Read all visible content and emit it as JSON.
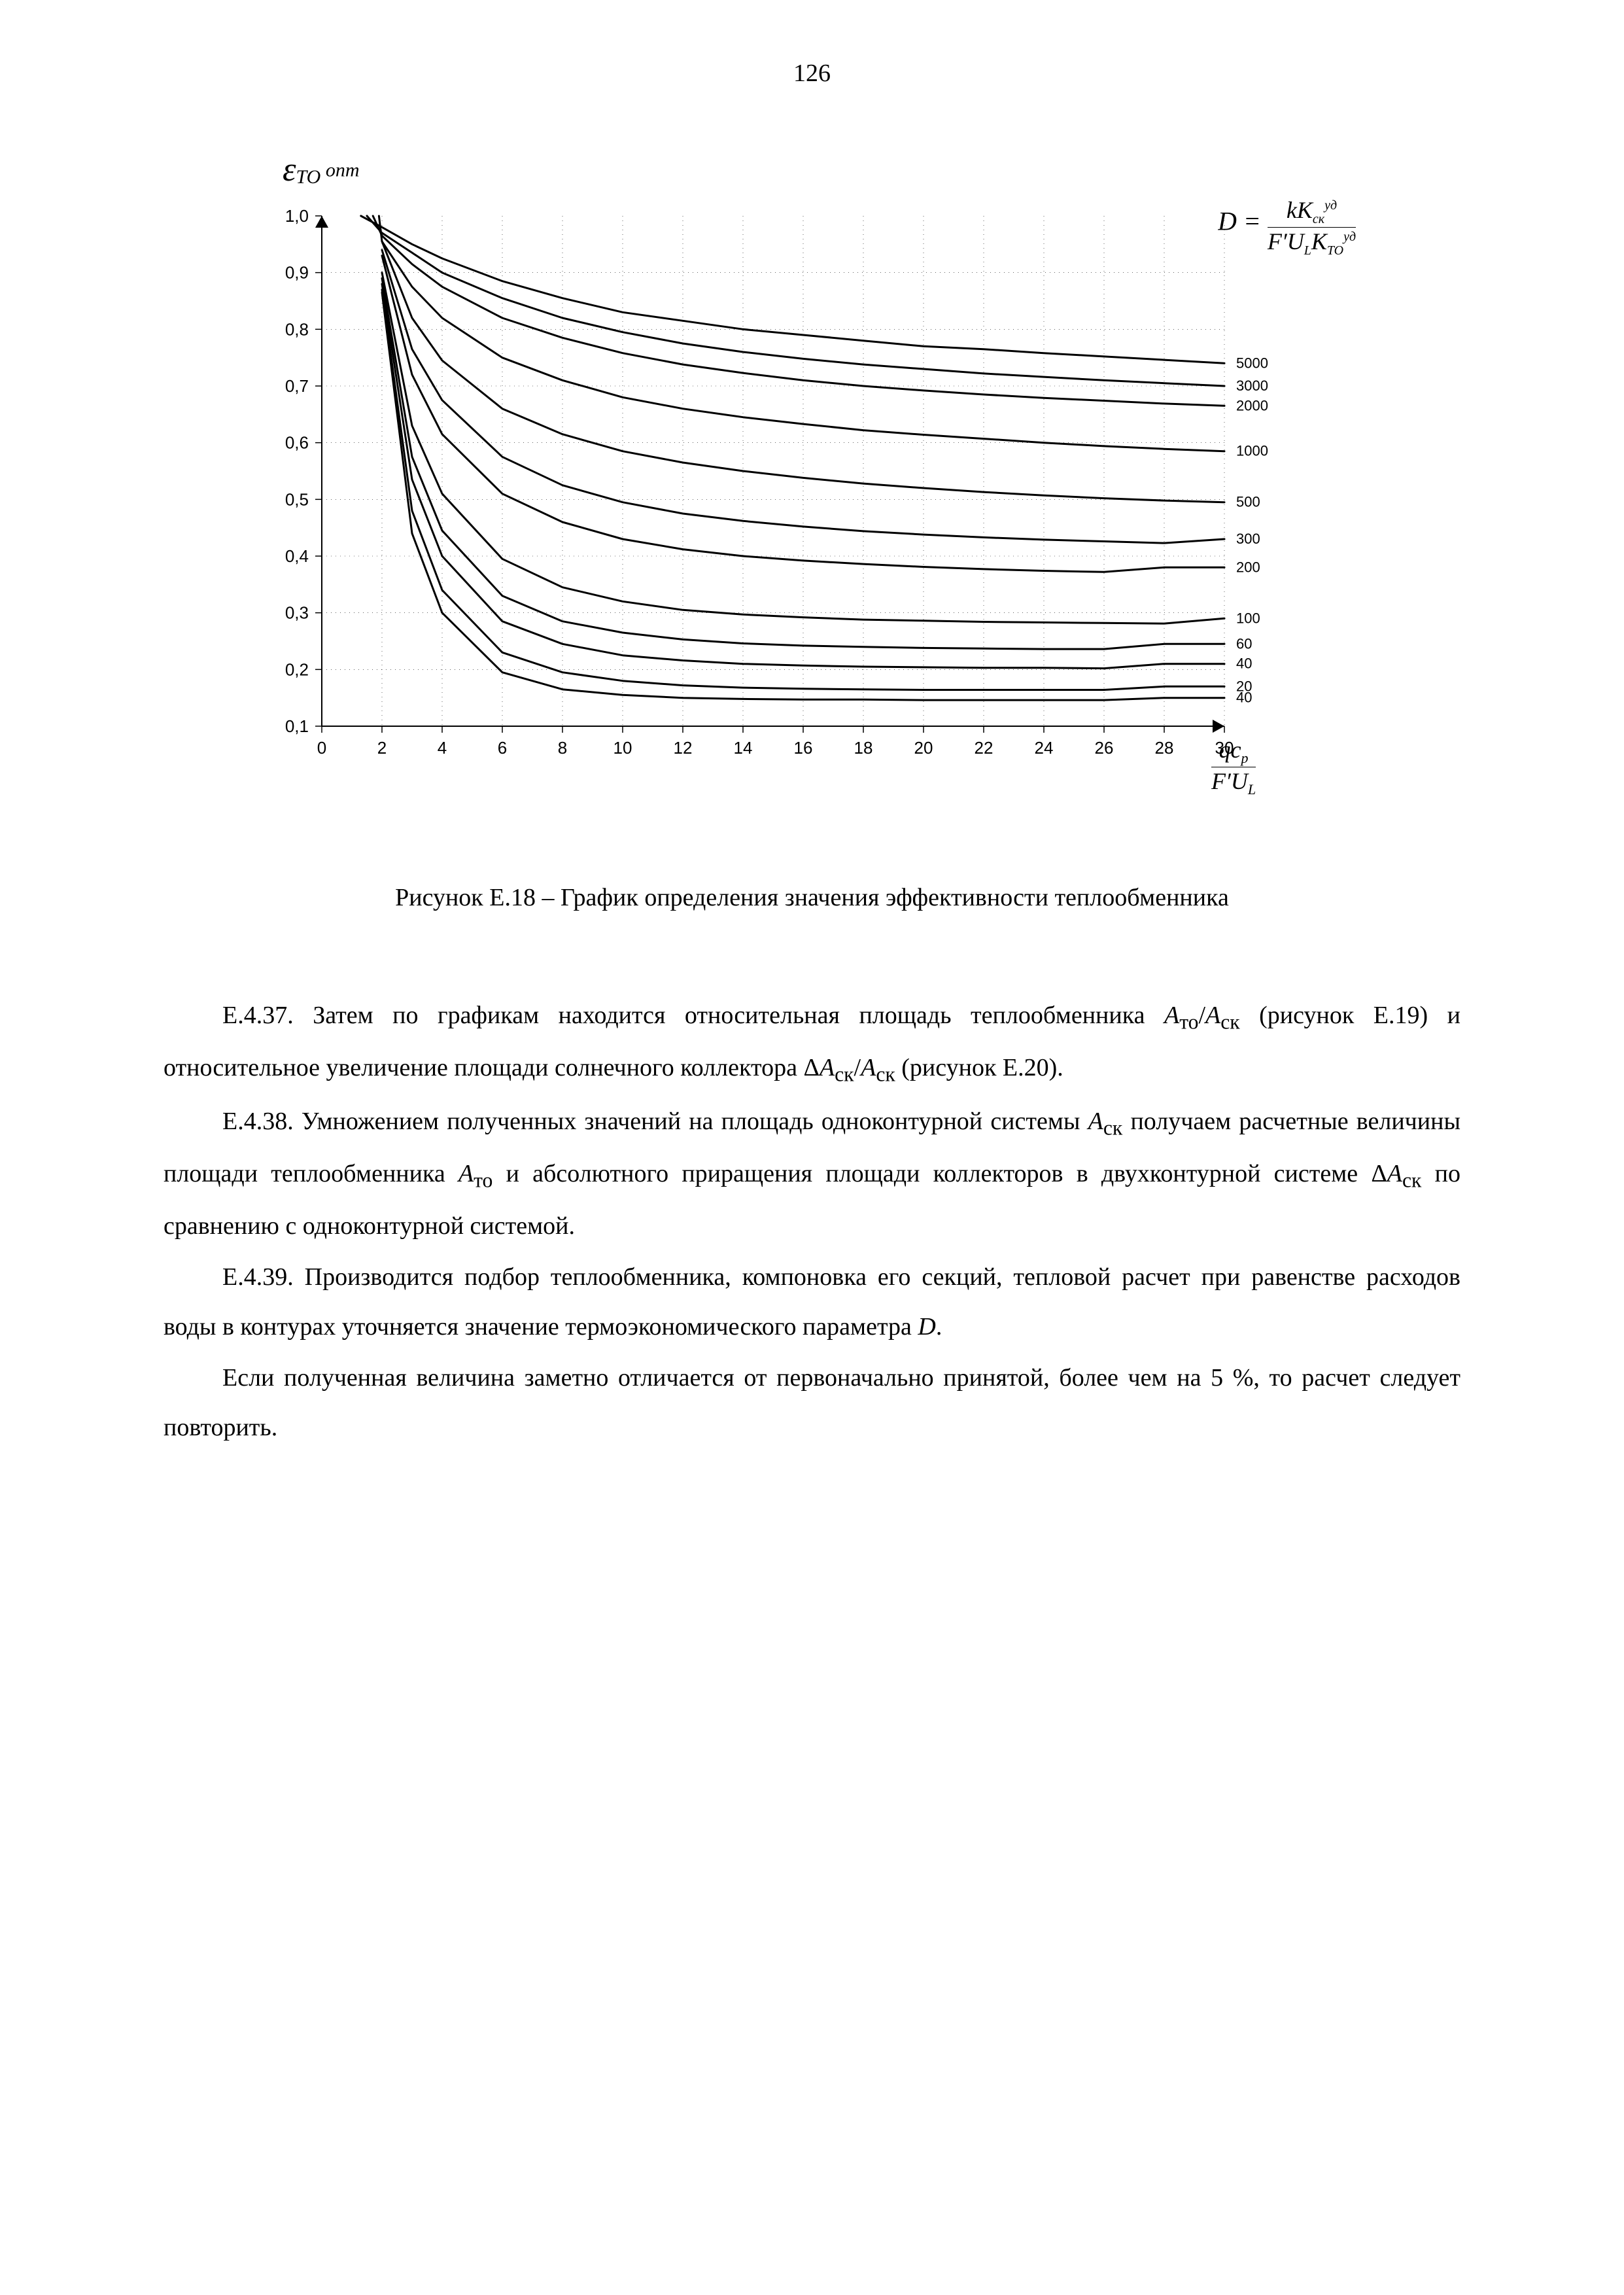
{
  "page_number": "126",
  "caption": "Рисунок Е.18 – График определения значения эффективности теплообменника",
  "chart": {
    "type": "line",
    "background_color": "#ffffff",
    "axis_color": "#000000",
    "grid_color": "#000000",
    "font_family": "Arial",
    "tick_fontsize": 26,
    "y_axis_title_html": "<span style='font-style:italic;font-size:52px;font-family:\"Times New Roman\"'>ε</span><span style='font-style:italic;font-size:30px;vertical-align:sub;font-family:\"Times New Roman\"'>TO</span><span style='font-style:italic;font-size:30px;vertical-align:super;font-family:\"Times New Roman\"'>&nbsp;onm</span>",
    "x_axis_title_html": "<span style='display:inline-block;vertical-align:middle'><span style='display:block;text-align:center;border-bottom:1.5px solid #000;padding:0 6px;font-style:italic;font-size:36px;font-family:\"Times New Roman\"'>qc<sub style='font-size:22px'>p</sub></span><span style='display:block;text-align:center;font-style:italic;font-size:36px;font-family:\"Times New Roman\"'>F&#8242;U<sub style='font-size:22px'>L</sub></span></span>",
    "d_formula_html": "<span style='font-style:italic;font-size:40px;font-family:\"Times New Roman\"'>D = </span><span style='display:inline-block;vertical-align:middle'><span style='display:block;text-align:center;border-bottom:1.5px solid #000;padding:0 6px;font-style:italic;font-size:36px;font-family:\"Times New Roman\"'>kK<sub style='font-size:20px'>ск</sub><sup style='font-size:20px'>уд</sup></span><span style='display:block;text-align:center;font-style:italic;font-size:36px;font-family:\"Times New Roman\"'>F&#8242;U<sub style='font-size:20px'>L</sub>K<sub style='font-size:20px'>TO</sub><sup style='font-size:20px'>уд</sup></span></span>",
    "xlim": [
      0,
      30
    ],
    "ylim": [
      0.1,
      1.0
    ],
    "xtick_step": 2,
    "ytick_step": 0.1,
    "xticks": [
      "0",
      "2",
      "4",
      "6",
      "8",
      "10",
      "12",
      "14",
      "16",
      "18",
      "20",
      "22",
      "24",
      "26",
      "28",
      "30"
    ],
    "yticks": [
      "0,1",
      "0,2",
      "0,3",
      "0,4",
      "0,5",
      "0,6",
      "0,7",
      "0,8",
      "0,9",
      "1,0"
    ],
    "line_color": "#000000",
    "line_width": 3,
    "series": [
      {
        "label": "5000",
        "end_y": 0.74,
        "points": [
          [
            1.3,
            1.0
          ],
          [
            2,
            0.98
          ],
          [
            3,
            0.95
          ],
          [
            4,
            0.925
          ],
          [
            6,
            0.885
          ],
          [
            8,
            0.855
          ],
          [
            10,
            0.83
          ],
          [
            12,
            0.815
          ],
          [
            14,
            0.8
          ],
          [
            16,
            0.79
          ],
          [
            18,
            0.78
          ],
          [
            20,
            0.77
          ],
          [
            22,
            0.765
          ],
          [
            24,
            0.758
          ],
          [
            26,
            0.752
          ],
          [
            28,
            0.746
          ],
          [
            30,
            0.74
          ]
        ]
      },
      {
        "label": "3000",
        "end_y": 0.7,
        "points": [
          [
            1.5,
            1.0
          ],
          [
            2,
            0.97
          ],
          [
            3,
            0.935
          ],
          [
            4,
            0.9
          ],
          [
            6,
            0.855
          ],
          [
            8,
            0.82
          ],
          [
            10,
            0.795
          ],
          [
            12,
            0.775
          ],
          [
            14,
            0.76
          ],
          [
            16,
            0.748
          ],
          [
            18,
            0.738
          ],
          [
            20,
            0.73
          ],
          [
            22,
            0.722
          ],
          [
            24,
            0.716
          ],
          [
            26,
            0.71
          ],
          [
            28,
            0.705
          ],
          [
            30,
            0.7
          ]
        ]
      },
      {
        "label": "2000",
        "end_y": 0.665,
        "points": [
          [
            1.7,
            1.0
          ],
          [
            2,
            0.965
          ],
          [
            3,
            0.915
          ],
          [
            4,
            0.875
          ],
          [
            6,
            0.82
          ],
          [
            8,
            0.785
          ],
          [
            10,
            0.758
          ],
          [
            12,
            0.738
          ],
          [
            14,
            0.723
          ],
          [
            16,
            0.71
          ],
          [
            18,
            0.7
          ],
          [
            20,
            0.692
          ],
          [
            22,
            0.685
          ],
          [
            24,
            0.679
          ],
          [
            26,
            0.674
          ],
          [
            28,
            0.669
          ],
          [
            30,
            0.665
          ]
        ]
      },
      {
        "label": "1000",
        "end_y": 0.585,
        "points": [
          [
            1.9,
            1.0
          ],
          [
            2,
            0.955
          ],
          [
            3,
            0.875
          ],
          [
            4,
            0.82
          ],
          [
            6,
            0.75
          ],
          [
            8,
            0.71
          ],
          [
            10,
            0.68
          ],
          [
            12,
            0.66
          ],
          [
            14,
            0.645
          ],
          [
            16,
            0.633
          ],
          [
            18,
            0.622
          ],
          [
            20,
            0.614
          ],
          [
            22,
            0.607
          ],
          [
            24,
            0.6
          ],
          [
            26,
            0.594
          ],
          [
            28,
            0.589
          ],
          [
            30,
            0.585
          ]
        ]
      },
      {
        "label": "500",
        "end_y": 0.495,
        "points": [
          [
            2,
            0.955
          ],
          [
            3,
            0.82
          ],
          [
            4,
            0.745
          ],
          [
            6,
            0.66
          ],
          [
            8,
            0.615
          ],
          [
            10,
            0.585
          ],
          [
            12,
            0.565
          ],
          [
            14,
            0.55
          ],
          [
            16,
            0.538
          ],
          [
            18,
            0.528
          ],
          [
            20,
            0.52
          ],
          [
            22,
            0.513
          ],
          [
            24,
            0.507
          ],
          [
            26,
            0.502
          ],
          [
            28,
            0.498
          ],
          [
            30,
            0.495
          ]
        ]
      },
      {
        "label": "300",
        "end_y": 0.43,
        "points": [
          [
            2,
            0.94
          ],
          [
            3,
            0.765
          ],
          [
            4,
            0.675
          ],
          [
            6,
            0.575
          ],
          [
            8,
            0.525
          ],
          [
            10,
            0.495
          ],
          [
            12,
            0.475
          ],
          [
            14,
            0.462
          ],
          [
            16,
            0.452
          ],
          [
            18,
            0.444
          ],
          [
            20,
            0.438
          ],
          [
            22,
            0.433
          ],
          [
            24,
            0.429
          ],
          [
            26,
            0.426
          ],
          [
            28,
            0.423
          ],
          [
            30,
            0.43
          ]
        ]
      },
      {
        "label": "200",
        "end_y": 0.38,
        "points": [
          [
            2,
            0.93
          ],
          [
            3,
            0.72
          ],
          [
            4,
            0.615
          ],
          [
            6,
            0.51
          ],
          [
            8,
            0.46
          ],
          [
            10,
            0.43
          ],
          [
            12,
            0.412
          ],
          [
            14,
            0.4
          ],
          [
            16,
            0.392
          ],
          [
            18,
            0.386
          ],
          [
            20,
            0.381
          ],
          [
            22,
            0.377
          ],
          [
            24,
            0.374
          ],
          [
            26,
            0.372
          ],
          [
            28,
            0.38
          ],
          [
            30,
            0.38
          ]
        ]
      },
      {
        "label": "100",
        "end_y": 0.29,
        "points": [
          [
            2,
            0.9
          ],
          [
            3,
            0.63
          ],
          [
            4,
            0.51
          ],
          [
            6,
            0.395
          ],
          [
            8,
            0.345
          ],
          [
            10,
            0.32
          ],
          [
            12,
            0.305
          ],
          [
            14,
            0.297
          ],
          [
            16,
            0.292
          ],
          [
            18,
            0.288
          ],
          [
            20,
            0.286
          ],
          [
            22,
            0.284
          ],
          [
            24,
            0.283
          ],
          [
            26,
            0.282
          ],
          [
            28,
            0.281
          ],
          [
            30,
            0.29
          ]
        ]
      },
      {
        "label": "60",
        "end_y": 0.245,
        "points": [
          [
            2,
            0.89
          ],
          [
            3,
            0.575
          ],
          [
            4,
            0.445
          ],
          [
            6,
            0.33
          ],
          [
            8,
            0.285
          ],
          [
            10,
            0.265
          ],
          [
            12,
            0.253
          ],
          [
            14,
            0.246
          ],
          [
            16,
            0.242
          ],
          [
            18,
            0.24
          ],
          [
            20,
            0.238
          ],
          [
            22,
            0.237
          ],
          [
            24,
            0.236
          ],
          [
            26,
            0.236
          ],
          [
            28,
            0.245
          ],
          [
            30,
            0.245
          ]
        ]
      },
      {
        "label": "40",
        "end_y": 0.21,
        "points": [
          [
            2,
            0.88
          ],
          [
            3,
            0.535
          ],
          [
            4,
            0.4
          ],
          [
            6,
            0.285
          ],
          [
            8,
            0.245
          ],
          [
            10,
            0.225
          ],
          [
            12,
            0.216
          ],
          [
            14,
            0.21
          ],
          [
            16,
            0.207
          ],
          [
            18,
            0.205
          ],
          [
            20,
            0.204
          ],
          [
            22,
            0.203
          ],
          [
            24,
            0.203
          ],
          [
            26,
            0.202
          ],
          [
            28,
            0.21
          ],
          [
            30,
            0.21
          ]
        ]
      },
      {
        "label": "20",
        "end_y": 0.17,
        "points": [
          [
            2,
            0.87
          ],
          [
            3,
            0.48
          ],
          [
            4,
            0.34
          ],
          [
            6,
            0.23
          ],
          [
            8,
            0.195
          ],
          [
            10,
            0.18
          ],
          [
            12,
            0.172
          ],
          [
            14,
            0.168
          ],
          [
            16,
            0.166
          ],
          [
            18,
            0.165
          ],
          [
            20,
            0.164
          ],
          [
            22,
            0.164
          ],
          [
            24,
            0.164
          ],
          [
            26,
            0.164
          ],
          [
            28,
            0.17
          ],
          [
            30,
            0.17
          ]
        ]
      },
      {
        "label": "40",
        "end_y": 0.15,
        "points": [
          [
            2,
            0.865
          ],
          [
            3,
            0.44
          ],
          [
            4,
            0.3
          ],
          [
            6,
            0.195
          ],
          [
            8,
            0.165
          ],
          [
            10,
            0.155
          ],
          [
            12,
            0.15
          ],
          [
            14,
            0.148
          ],
          [
            16,
            0.147
          ],
          [
            18,
            0.147
          ],
          [
            20,
            0.146
          ],
          [
            22,
            0.146
          ],
          [
            24,
            0.146
          ],
          [
            26,
            0.146
          ],
          [
            28,
            0.15
          ],
          [
            30,
            0.15
          ]
        ]
      }
    ]
  },
  "paragraphs": [
    "Е.4.37. Затем по графикам находится относительная площадь теплообменника <span class='math'>A</span><sub>то</sub>/<span class='math'>A</span><sub>ск</sub> (рисунок Е.19) и относительное увеличение площади солнечного коллектора Δ<span class='math'>A</span><sub>ск</sub>/<span class='math'>A</span><sub>ск</sub> (рисунок Е.20).",
    "Е.4.38. Умножением полученных значений на площадь одноконтурной системы <span class='math'>A</span><sub>ск</sub> получаем расчетные величины площади теплообменника <span class='math'>A</span><sub>то</sub> и абсолютного приращения площади коллекторов в двухконтурной системе Δ<span class='math'>A</span><sub>ск</sub> по сравнению с одноконтурной системой.",
    "Е.4.39. Производится подбор теплообменника, компоновка его секций, тепловой расчет при равенстве расходов воды в контурах уточняется значение термоэкономического параметра <span class='math'>D</span>.",
    "Если полученная величина заметно отличается от первоначально принятой, более чем на 5 %, то расчет следует повторить."
  ]
}
